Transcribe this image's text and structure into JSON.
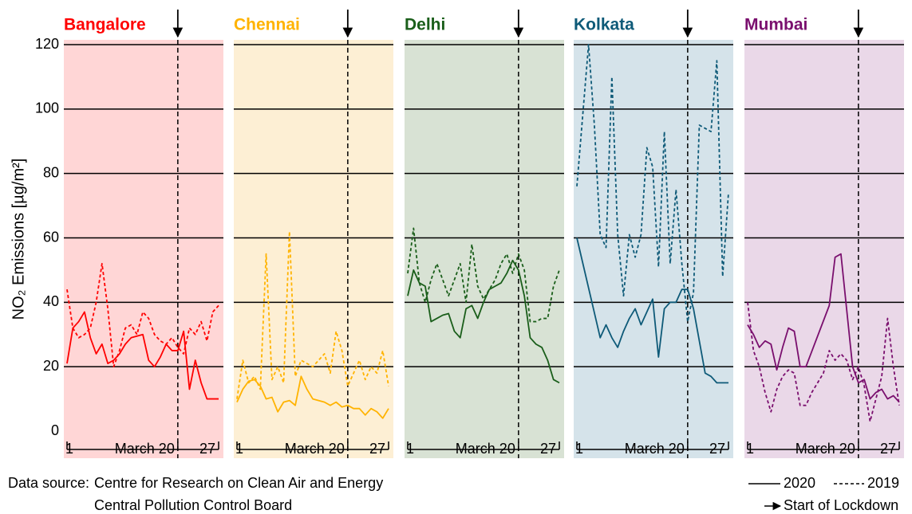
{
  "chart_data": [
    {
      "type": "line",
      "title": "Bangalore",
      "title_color": "#ff0000",
      "background": "#ffd6d6",
      "y_label": "NO₂ Emissions [µg/m²]",
      "show_yticks": true,
      "grid": true,
      "lockdown_day": 20,
      "xlim": [
        1,
        27
      ],
      "ylim": [
        0,
        120
      ],
      "yticks": [
        0,
        20,
        40,
        60,
        80,
        100,
        120
      ],
      "xticks": [
        1,
        {
          "value": 20,
          "label": "March 20"
        },
        27
      ],
      "x": [
        1,
        2,
        3,
        4,
        5,
        6,
        7,
        8,
        9,
        10,
        11,
        12,
        13,
        14,
        15,
        16,
        17,
        18,
        19,
        20,
        21,
        22,
        23,
        24,
        25,
        26,
        27
      ],
      "series": [
        {
          "name": "2020",
          "color": "#ff0000",
          "dash": false,
          "values": [
            21,
            32,
            34,
            37,
            29,
            24,
            27,
            21,
            22,
            24,
            27,
            29,
            29.5,
            30,
            22,
            20,
            23,
            27,
            25,
            25,
            31,
            13,
            22,
            15,
            10,
            10,
            10
          ]
        },
        {
          "name": "2019",
          "color": "#ff0000",
          "dash": true,
          "values": [
            44,
            32,
            29,
            30,
            32,
            40,
            52,
            38,
            20,
            25,
            32,
            33,
            30,
            37,
            35,
            30,
            28,
            27,
            29,
            26,
            24,
            32,
            30,
            34,
            28,
            37,
            39
          ]
        }
      ]
    },
    {
      "type": "line",
      "title": "Chennai",
      "title_color": "#ffb300",
      "background": "#fdefd4",
      "show_yticks": false,
      "grid": true,
      "lockdown_day": 20,
      "xlim": [
        1,
        27
      ],
      "ylim": [
        0,
        120
      ],
      "yticks": [
        0,
        20,
        40,
        60,
        80,
        100,
        120
      ],
      "xticks": [
        1,
        {
          "value": 20,
          "label": "March 20"
        },
        27
      ],
      "x": [
        1,
        2,
        3,
        4,
        5,
        6,
        7,
        8,
        9,
        10,
        11,
        12,
        13,
        14,
        15,
        16,
        17,
        18,
        19,
        20,
        21,
        22,
        23,
        24,
        25,
        26,
        27
      ],
      "series": [
        {
          "name": "2020",
          "color": "#ffb300",
          "dash": false,
          "values": [
            9,
            13,
            15.5,
            16,
            14,
            10,
            10.5,
            6,
            9,
            9.5,
            8,
            17,
            13,
            10,
            9.5,
            9,
            8,
            9,
            7.5,
            8,
            7,
            7,
            5,
            7,
            6,
            4,
            7
          ]
        },
        {
          "name": "2019",
          "color": "#ffb300",
          "dash": true,
          "values": [
            10,
            22,
            15,
            17,
            13,
            55,
            16,
            20,
            15,
            62,
            17,
            22,
            21,
            20,
            22,
            24,
            18,
            31,
            25,
            14,
            18,
            22,
            16,
            20,
            18,
            25,
            14
          ]
        }
      ]
    },
    {
      "type": "line",
      "title": "Delhi",
      "title_color": "#1a5e1a",
      "background": "#d8e2d4",
      "show_yticks": false,
      "grid": true,
      "lockdown_day": 20,
      "xlim": [
        1,
        27
      ],
      "ylim": [
        0,
        120
      ],
      "yticks": [
        0,
        20,
        40,
        60,
        80,
        100,
        120
      ],
      "xticks": [
        1,
        {
          "value": 20,
          "label": "March 20"
        },
        27
      ],
      "x": [
        1,
        2,
        3,
        4,
        5,
        6,
        7,
        8,
        9,
        10,
        11,
        12,
        13,
        14,
        15,
        16,
        17,
        18,
        19,
        20,
        21,
        22,
        23,
        24,
        25,
        26,
        27
      ],
      "series": [
        {
          "name": "2020",
          "color": "#1a5e1a",
          "dash": false,
          "values": [
            42,
            50,
            46,
            45,
            34,
            35,
            36,
            36.5,
            31,
            29,
            38,
            39,
            35,
            40,
            44,
            45,
            46,
            49,
            53,
            50,
            42,
            29,
            27,
            26,
            22,
            16,
            15
          ]
        },
        {
          "name": "2019",
          "color": "#1a5e1a",
          "dash": true,
          "values": [
            49,
            63,
            46,
            40,
            47,
            52,
            47,
            42,
            47,
            52,
            40,
            58,
            45,
            41,
            44,
            47,
            52,
            55,
            49,
            55,
            50,
            34,
            34,
            35,
            35,
            45,
            50
          ]
        }
      ]
    },
    {
      "type": "line",
      "title": "Kolkata",
      "title_color": "#0e5a78",
      "background": "#d5e3ea",
      "show_yticks": false,
      "grid": true,
      "lockdown_day": 20,
      "xlim": [
        1,
        27
      ],
      "ylim": [
        0,
        120
      ],
      "yticks": [
        0,
        20,
        40,
        60,
        80,
        100,
        120
      ],
      "xticks": [
        1,
        {
          "value": 20,
          "label": "March 20"
        },
        27
      ],
      "x": [
        1,
        2,
        3,
        4,
        5,
        6,
        7,
        8,
        9,
        10,
        11,
        12,
        13,
        14,
        15,
        16,
        17,
        18,
        19,
        20,
        21,
        22,
        23,
        24,
        25,
        26,
        27
      ],
      "series": [
        {
          "name": "2020",
          "color": "#0e5a78",
          "dash": false,
          "x": [
            1,
            5,
            6,
            7,
            8,
            9,
            10,
            11,
            12,
            13,
            14,
            15,
            16,
            17,
            18,
            19,
            20,
            21,
            22,
            23,
            24,
            25,
            26,
            27
          ],
          "values": [
            60,
            29,
            33,
            29,
            26,
            31,
            35,
            38,
            33,
            37,
            41,
            23,
            38,
            40,
            40,
            44,
            44,
            38,
            28,
            18,
            17,
            15,
            15,
            15
          ]
        },
        {
          "name": "2019",
          "color": "#0e5a78",
          "dash": true,
          "values": [
            76,
            98,
            120,
            95,
            61,
            57,
            110,
            61,
            42,
            61,
            54,
            61,
            88,
            82,
            51,
            93,
            52,
            75,
            52,
            34,
            43,
            95,
            94,
            93,
            115,
            48,
            74
          ]
        }
      ]
    },
    {
      "type": "line",
      "title": "Mumbai",
      "title_color": "#7a0f6e",
      "background": "#ead8e8",
      "show_yticks": false,
      "grid": true,
      "lockdown_day": 20,
      "xlim": [
        1,
        27
      ],
      "ylim": [
        0,
        120
      ],
      "yticks": [
        0,
        20,
        40,
        60,
        80,
        100,
        120
      ],
      "xticks": [
        1,
        {
          "value": 20,
          "label": "March 20"
        },
        27
      ],
      "x": [
        1,
        2,
        3,
        4,
        5,
        6,
        7,
        8,
        9,
        10,
        11,
        12,
        13,
        14,
        15,
        16,
        17,
        18,
        19,
        20,
        21,
        22,
        23,
        24,
        25,
        26,
        27
      ],
      "series": [
        {
          "name": "2020",
          "color": "#7a0f6e",
          "dash": false,
          "x": [
            1,
            2,
            3,
            4,
            5,
            6,
            7,
            8,
            9,
            10,
            11,
            15,
            16,
            17,
            19,
            20,
            21,
            22,
            23,
            24,
            25,
            26,
            27
          ],
          "values": [
            33,
            30,
            26,
            28,
            27,
            19,
            26,
            32,
            31,
            20,
            20,
            39,
            54,
            55,
            20,
            15,
            16,
            10,
            12,
            13,
            10,
            11,
            9
          ]
        },
        {
          "name": "2019",
          "color": "#7a0f6e",
          "dash": true,
          "values": [
            40,
            25,
            20,
            12,
            6,
            13,
            17,
            19,
            18,
            8,
            8,
            12,
            15,
            18,
            25,
            22,
            24,
            22,
            16,
            20,
            14,
            3,
            10,
            17,
            35,
            20,
            8
          ]
        }
      ]
    }
  ],
  "footer": {
    "label": "Data source:",
    "lines": [
      "Centre for Research on Clean Air and Energy",
      "Central Pollution Control Board"
    ]
  },
  "legend": {
    "lockdown": "Start of Lockdown"
  }
}
